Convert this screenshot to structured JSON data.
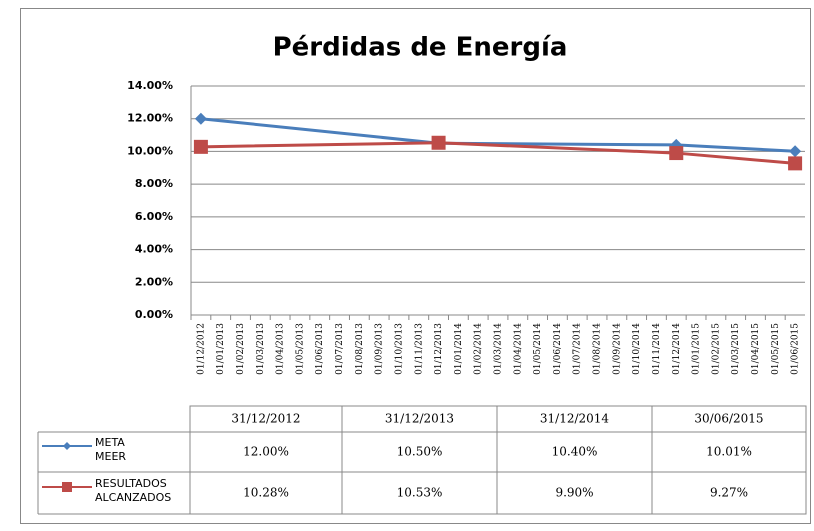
{
  "chart_data": {
    "type": "line",
    "title": "Pérdidas de Energía",
    "x_labels": [
      "01/12/2012",
      "01/01/2013",
      "01/02/2013",
      "01/03/2013",
      "01/04/2013",
      "01/05/2013",
      "01/06/2013",
      "01/07/2013",
      "01/08/2013",
      "01/09/2013",
      "01/10/2013",
      "01/11/2013",
      "01/12/2013",
      "01/01/2014",
      "01/02/2014",
      "01/03/2014",
      "01/04/2014",
      "01/05/2014",
      "01/06/2014",
      "01/07/2014",
      "01/08/2014",
      "01/09/2014",
      "01/10/2014",
      "01/11/2014",
      "01/12/2014",
      "01/01/2015",
      "01/02/2015",
      "01/03/2015",
      "01/04/2015",
      "01/05/2015",
      "01/06/2015"
    ],
    "categories": [
      "31/12/2012",
      "31/12/2013",
      "31/12/2014",
      "30/06/2015"
    ],
    "series": [
      {
        "name": "META MEER",
        "color": "#4a7ebb",
        "marker": "diamond",
        "values": [
          12,
          10.5,
          10.4,
          10.01
        ],
        "value_labels": [
          "12.00%",
          "10.50%",
          "10.40%",
          "10.01%"
        ]
      },
      {
        "name": "RESULTADOS ALCANZADOS",
        "color": "#be4b48",
        "marker": "square",
        "values": [
          10.28,
          10.53,
          9.9,
          9.27
        ],
        "value_labels": [
          "10.28%",
          "10.53%",
          "9.90%",
          "9.27%"
        ]
      }
    ],
    "ylim": [
      0,
      14
    ],
    "yticks": [
      {
        "value": 0,
        "label": "0.00%"
      },
      {
        "value": 2,
        "label": "2.00%"
      },
      {
        "value": 4,
        "label": "4.00%"
      },
      {
        "value": 6,
        "label": "6.00%"
      },
      {
        "value": 8,
        "label": "8.00%"
      },
      {
        "value": 10,
        "label": "10.00%"
      },
      {
        "value": 12,
        "label": "12.00%"
      },
      {
        "value": 14,
        "label": "14.00%"
      }
    ],
    "grid": true
  }
}
